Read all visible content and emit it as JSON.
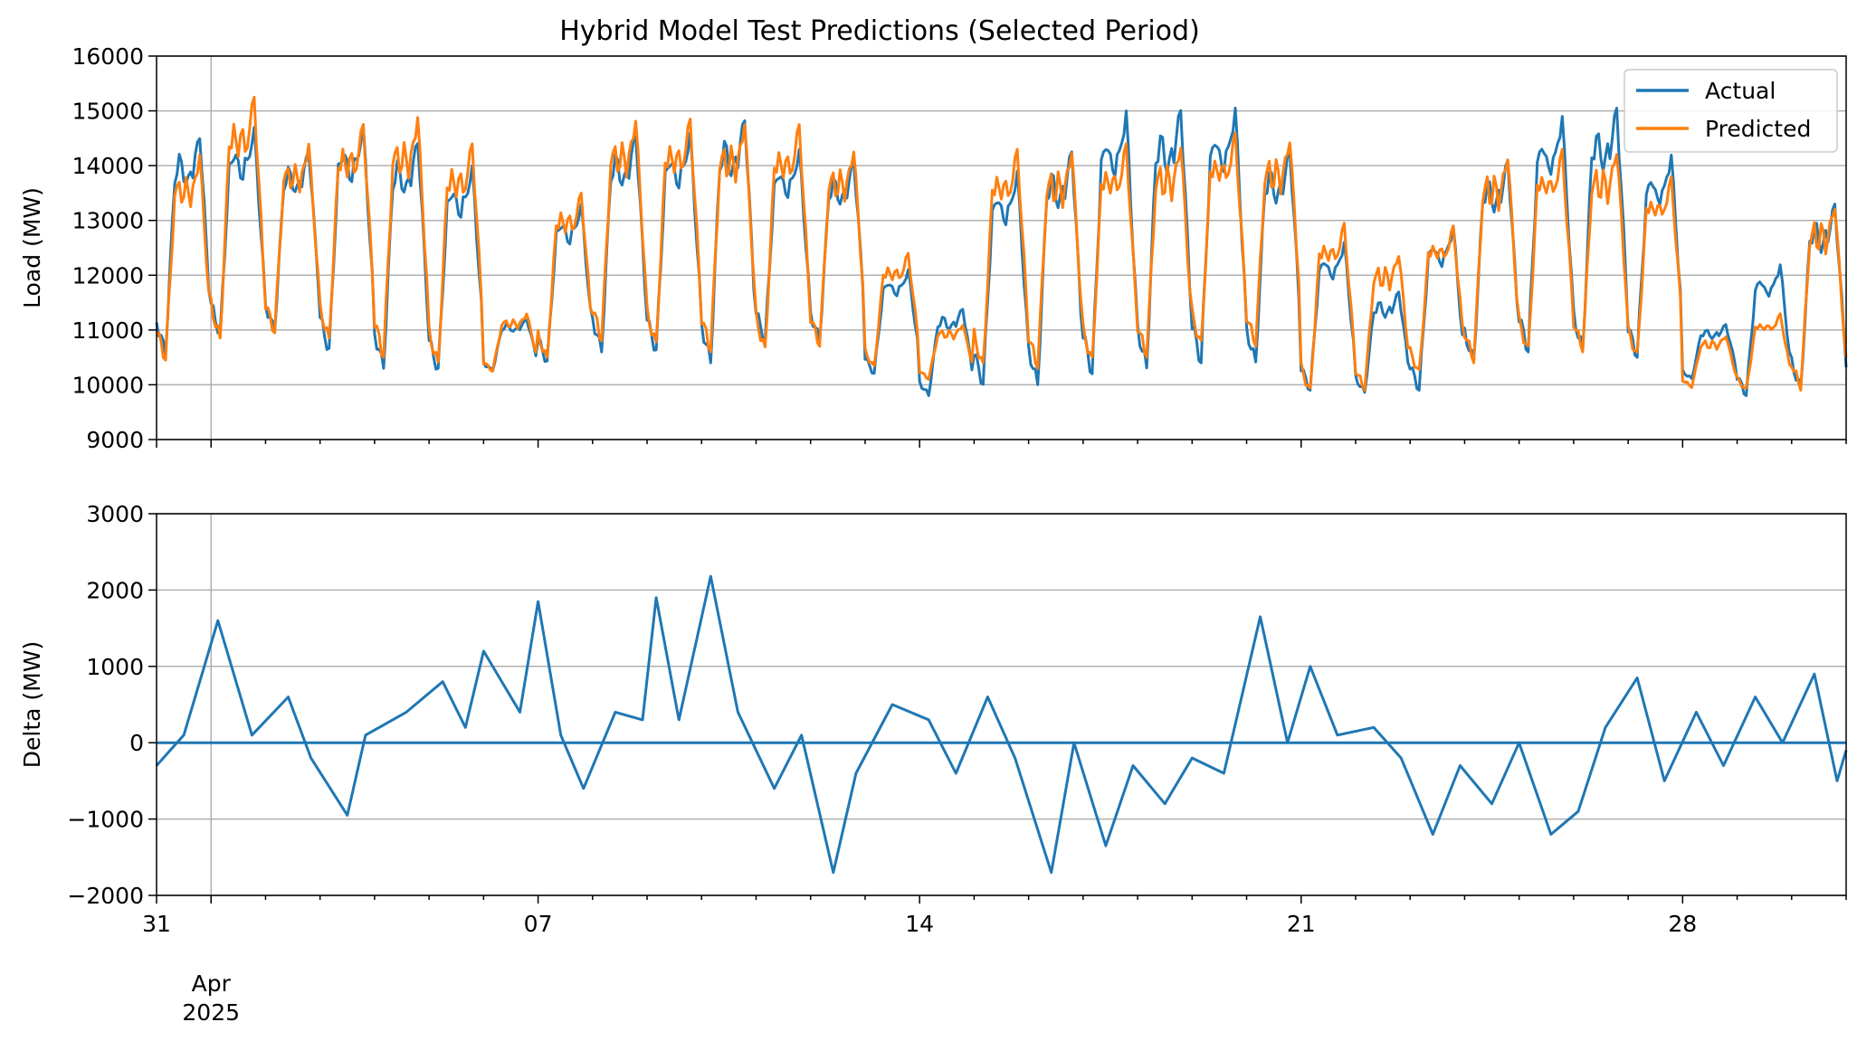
{
  "title": "Hybrid Model Test Predictions (Selected Period)",
  "colors": {
    "actual": "#1f77b4",
    "predicted": "#ff7f0e",
    "grid": "#b0b0b0",
    "axis": "#000000"
  },
  "chart_data": [
    {
      "type": "line",
      "title": "Hybrid Model Test Predictions (Selected Period)",
      "ylabel": "Load (MW)",
      "ylim": [
        9000,
        16000
      ],
      "yticks": [
        9000,
        10000,
        11000,
        12000,
        13000,
        14000,
        15000,
        16000
      ],
      "xlim": [
        "2025-03-31",
        "2025-05-01"
      ],
      "grid": true,
      "legend": {
        "placement": "top-right",
        "entries": [
          "Actual",
          "Predicted"
        ]
      },
      "series": [
        {
          "name": "Actual",
          "color": "#1f77b4",
          "daily": [
            {
              "date": "2025-03-31",
              "min": 10550,
              "max": 14600
            },
            {
              "date": "2025-04-01",
              "min": 10900,
              "max": 14700
            },
            {
              "date": "2025-04-02",
              "min": 10950,
              "max": 14300
            },
            {
              "date": "2025-04-03",
              "min": 10600,
              "max": 14750
            },
            {
              "date": "2025-04-04",
              "min": 10300,
              "max": 14500
            },
            {
              "date": "2025-04-05",
              "min": 10250,
              "max": 14000
            },
            {
              "date": "2025-04-06",
              "min": 10250,
              "max": 11200
            },
            {
              "date": "2025-04-07",
              "min": 10400,
              "max": 13300
            },
            {
              "date": "2025-04-08",
              "min": 10600,
              "max": 14600
            },
            {
              "date": "2025-04-09",
              "min": 10600,
              "max": 14600
            },
            {
              "date": "2025-04-10",
              "min": 10400,
              "max": 14900
            },
            {
              "date": "2025-04-11",
              "min": 10800,
              "max": 14300
            },
            {
              "date": "2025-04-12",
              "min": 10800,
              "max": 14100
            },
            {
              "date": "2025-04-13",
              "min": 10200,
              "max": 12100
            },
            {
              "date": "2025-04-14",
              "min": 9800,
              "max": 11400
            },
            {
              "date": "2025-04-15",
              "min": 10000,
              "max": 13900
            },
            {
              "date": "2025-04-16",
              "min": 10000,
              "max": 14300
            },
            {
              "date": "2025-04-17",
              "min": 10200,
              "max": 15000
            },
            {
              "date": "2025-04-18",
              "min": 10300,
              "max": 15050
            },
            {
              "date": "2025-04-19",
              "min": 10400,
              "max": 15050
            },
            {
              "date": "2025-04-20",
              "min": 10400,
              "max": 14300
            },
            {
              "date": "2025-04-21",
              "min": 9900,
              "max": 12600
            },
            {
              "date": "2025-04-22",
              "min": 9850,
              "max": 11700
            },
            {
              "date": "2025-04-23",
              "min": 9900,
              "max": 12900
            },
            {
              "date": "2025-04-24",
              "min": 10400,
              "max": 14100
            },
            {
              "date": "2025-04-25",
              "min": 10600,
              "max": 14900
            },
            {
              "date": "2025-04-26",
              "min": 10600,
              "max": 15050
            },
            {
              "date": "2025-04-27",
              "min": 10500,
              "max": 14200
            },
            {
              "date": "2025-04-28",
              "min": 10100,
              "max": 11100
            },
            {
              "date": "2025-04-29",
              "min": 9800,
              "max": 12200
            },
            {
              "date": "2025-04-30",
              "min": 9900,
              "max": 13300
            }
          ]
        },
        {
          "name": "Predicted",
          "color": "#ff7f0e",
          "daily": [
            {
              "date": "2025-03-31",
              "min": 10450,
              "max": 14200
            },
            {
              "date": "2025-04-01",
              "min": 10800,
              "max": 15250
            },
            {
              "date": "2025-04-02",
              "min": 10950,
              "max": 14400
            },
            {
              "date": "2025-04-03",
              "min": 10800,
              "max": 14750
            },
            {
              "date": "2025-04-04",
              "min": 10500,
              "max": 14900
            },
            {
              "date": "2025-04-05",
              "min": 10350,
              "max": 14400
            },
            {
              "date": "2025-04-06",
              "min": 10250,
              "max": 11300
            },
            {
              "date": "2025-04-07",
              "min": 10450,
              "max": 13500
            },
            {
              "date": "2025-04-08",
              "min": 10800,
              "max": 14850
            },
            {
              "date": "2025-04-09",
              "min": 10700,
              "max": 14850
            },
            {
              "date": "2025-04-10",
              "min": 10600,
              "max": 14800
            },
            {
              "date": "2025-04-11",
              "min": 10600,
              "max": 14750
            },
            {
              "date": "2025-04-12",
              "min": 10700,
              "max": 14300
            },
            {
              "date": "2025-04-13",
              "min": 10300,
              "max": 12400
            },
            {
              "date": "2025-04-14",
              "min": 10100,
              "max": 11100
            },
            {
              "date": "2025-04-15",
              "min": 10300,
              "max": 14300
            },
            {
              "date": "2025-04-16",
              "min": 10300,
              "max": 14300
            },
            {
              "date": "2025-04-17",
              "min": 10400,
              "max": 14400
            },
            {
              "date": "2025-04-18",
              "min": 10500,
              "max": 14400
            },
            {
              "date": "2025-04-19",
              "min": 10700,
              "max": 14600
            },
            {
              "date": "2025-04-20",
              "min": 10700,
              "max": 14500
            },
            {
              "date": "2025-04-21",
              "min": 9850,
              "max": 12950
            },
            {
              "date": "2025-04-22",
              "min": 9900,
              "max": 12400
            },
            {
              "date": "2025-04-23",
              "min": 10200,
              "max": 12900
            },
            {
              "date": "2025-04-24",
              "min": 10400,
              "max": 14200
            },
            {
              "date": "2025-04-25",
              "min": 10600,
              "max": 14300
            },
            {
              "date": "2025-04-26",
              "min": 10600,
              "max": 14300
            },
            {
              "date": "2025-04-27",
              "min": 10500,
              "max": 13800
            },
            {
              "date": "2025-04-28",
              "min": 9950,
              "max": 10900
            },
            {
              "date": "2025-04-29",
              "min": 9900,
              "max": 11300
            },
            {
              "date": "2025-04-30",
              "min": 9900,
              "max": 13300
            }
          ]
        }
      ]
    },
    {
      "type": "line",
      "ylabel": "Delta (MW)",
      "ylim": [
        -2000,
        3000
      ],
      "yticks": [
        -2000,
        -1000,
        0,
        1000,
        2000,
        3000
      ],
      "xlim": [
        "2025-03-31",
        "2025-05-01"
      ],
      "grid": true,
      "reference_line": 0,
      "series": [
        {
          "color": "#1f77b4",
          "points": [
            {
              "date": "2025-03-31T00:00",
              "value": -300
            },
            {
              "date": "2025-03-31T12:00",
              "value": 100
            },
            {
              "date": "2025-04-01T03:00",
              "value": 1600
            },
            {
              "date": "2025-04-01T18:00",
              "value": 100
            },
            {
              "date": "2025-04-02T10:00",
              "value": 600
            },
            {
              "date": "2025-04-02T20:00",
              "value": -200
            },
            {
              "date": "2025-04-03T12:00",
              "value": -950
            },
            {
              "date": "2025-04-03T20:00",
              "value": 100
            },
            {
              "date": "2025-04-04T14:00",
              "value": 400
            },
            {
              "date": "2025-04-05T06:00",
              "value": 800
            },
            {
              "date": "2025-04-05T16:00",
              "value": 200
            },
            {
              "date": "2025-04-06T00:00",
              "value": 1200
            },
            {
              "date": "2025-04-06T16:00",
              "value": 400
            },
            {
              "date": "2025-04-07T00:00",
              "value": 1850
            },
            {
              "date": "2025-04-07T10:00",
              "value": 100
            },
            {
              "date": "2025-04-07T20:00",
              "value": -600
            },
            {
              "date": "2025-04-08T10:00",
              "value": 400
            },
            {
              "date": "2025-04-08T22:00",
              "value": 300
            },
            {
              "date": "2025-04-09T04:00",
              "value": 1900
            },
            {
              "date": "2025-04-09T14:00",
              "value": 300
            },
            {
              "date": "2025-04-10T04:00",
              "value": 2180
            },
            {
              "date": "2025-04-10T16:00",
              "value": 400
            },
            {
              "date": "2025-04-11T08:00",
              "value": -600
            },
            {
              "date": "2025-04-11T20:00",
              "value": 100
            },
            {
              "date": "2025-04-12T10:00",
              "value": -1700
            },
            {
              "date": "2025-04-12T20:00",
              "value": -400
            },
            {
              "date": "2025-04-13T12:00",
              "value": 500
            },
            {
              "date": "2025-04-14T04:00",
              "value": 300
            },
            {
              "date": "2025-04-14T16:00",
              "value": -400
            },
            {
              "date": "2025-04-15T06:00",
              "value": 600
            },
            {
              "date": "2025-04-15T18:00",
              "value": -200
            },
            {
              "date": "2025-04-16T10:00",
              "value": -1700
            },
            {
              "date": "2025-04-16T20:00",
              "value": 0
            },
            {
              "date": "2025-04-17T10:00",
              "value": -1350
            },
            {
              "date": "2025-04-17T22:00",
              "value": -300
            },
            {
              "date": "2025-04-18T12:00",
              "value": -800
            },
            {
              "date": "2025-04-19T00:00",
              "value": -200
            },
            {
              "date": "2025-04-19T14:00",
              "value": -400
            },
            {
              "date": "2025-04-20T06:00",
              "value": 1650
            },
            {
              "date": "2025-04-20T18:00",
              "value": 0
            },
            {
              "date": "2025-04-21T04:00",
              "value": 1000
            },
            {
              "date": "2025-04-21T16:00",
              "value": 100
            },
            {
              "date": "2025-04-22T08:00",
              "value": 200
            },
            {
              "date": "2025-04-22T20:00",
              "value": -200
            },
            {
              "date": "2025-04-23T10:00",
              "value": -1200
            },
            {
              "date": "2025-04-23T22:00",
              "value": -300
            },
            {
              "date": "2025-04-24T12:00",
              "value": -800
            },
            {
              "date": "2025-04-25T00:00",
              "value": 0
            },
            {
              "date": "2025-04-25T14:00",
              "value": -1200
            },
            {
              "date": "2025-04-26T02:00",
              "value": -900
            },
            {
              "date": "2025-04-26T14:00",
              "value": 200
            },
            {
              "date": "2025-04-27T04:00",
              "value": 850
            },
            {
              "date": "2025-04-27T16:00",
              "value": -500
            },
            {
              "date": "2025-04-28T06:00",
              "value": 400
            },
            {
              "date": "2025-04-28T18:00",
              "value": -300
            },
            {
              "date": "2025-04-29T08:00",
              "value": 600
            },
            {
              "date": "2025-04-29T20:00",
              "value": 0
            },
            {
              "date": "2025-04-30T10:00",
              "value": 900
            },
            {
              "date": "2025-04-30T20:00",
              "value": -500
            },
            {
              "date": "2025-05-01T00:00",
              "value": -100
            }
          ]
        }
      ]
    }
  ],
  "x_axis": {
    "major_ticks": [
      {
        "date": "2025-03-31",
        "label": "31"
      },
      {
        "date": "2025-04-07",
        "label": "07"
      },
      {
        "date": "2025-04-14",
        "label": "14"
      },
      {
        "date": "2025-04-21",
        "label": "21"
      },
      {
        "date": "2025-04-28",
        "label": "28"
      }
    ],
    "month_marker": {
      "date": "2025-04-01",
      "month": "Apr",
      "year": "2025"
    }
  }
}
